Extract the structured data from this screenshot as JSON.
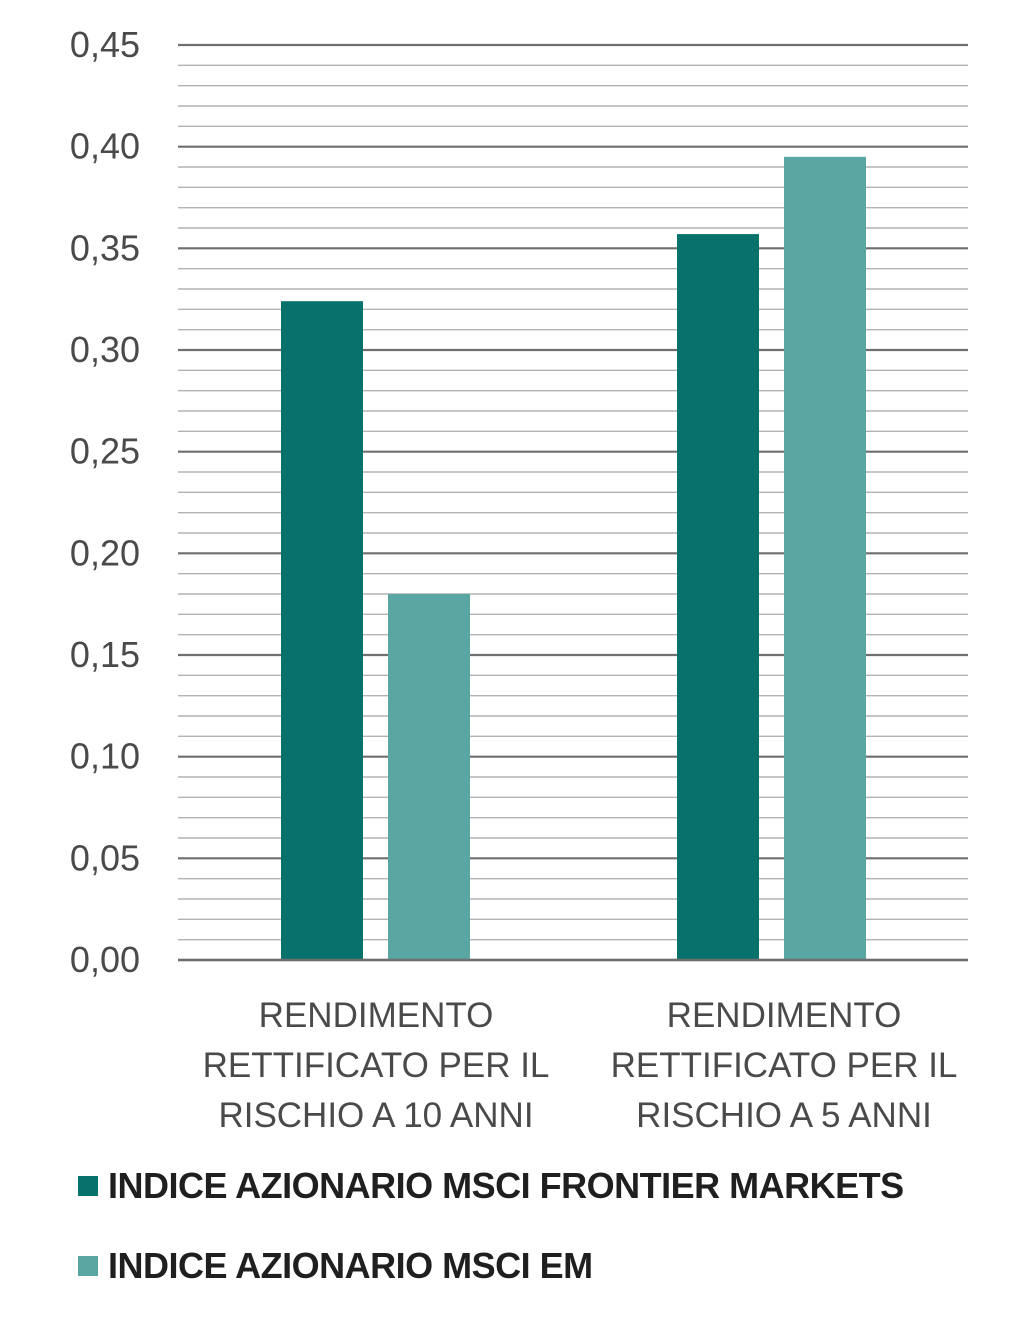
{
  "chart_data": {
    "type": "bar",
    "categories": [
      [
        "RENDIMENTO",
        "RETTIFICATO PER IL",
        "RISCHIO A 10 ANNI"
      ],
      [
        "RENDIMENTO",
        "RETTIFICATO PER IL",
        "RISCHIO A 5 ANNI"
      ]
    ],
    "series": [
      {
        "name": "INDICE AZIONARIO MSCI FRONTIER MARKETS",
        "color": "#06726b",
        "values": [
          0.324,
          0.357
        ]
      },
      {
        "name": "INDICE AZIONARIO MSCI EM",
        "color": "#5aa6a3",
        "values": [
          0.18,
          0.395
        ]
      }
    ],
    "ylim": [
      0,
      0.45
    ],
    "yticks": [
      "0,00",
      "0,05",
      "0,10",
      "0,15",
      "0,20",
      "0,25",
      "0,30",
      "0,35",
      "0,40",
      "0,45"
    ],
    "minor_grid_step": 0.01,
    "grid": true,
    "legend_position": "bottom",
    "title": "",
    "xlabel": "",
    "ylabel": ""
  }
}
